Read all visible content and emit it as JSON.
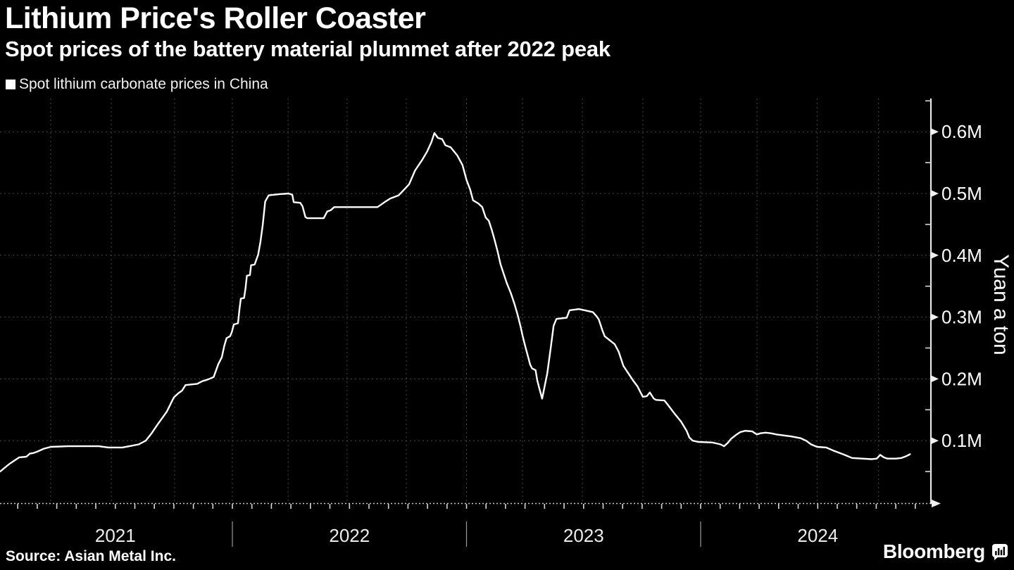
{
  "header": {
    "title": "Lithium Price's Roller Coaster",
    "subtitle": "Spot prices of the battery material plummet after 2022 peak"
  },
  "legend": {
    "label": "Spot lithium carbonate prices in China",
    "marker_color": "#ffffff"
  },
  "footer": {
    "source": "Source: Asian Metal Inc.",
    "brand": "Bloomberg"
  },
  "colors": {
    "background": "#000000",
    "line": "#ffffff",
    "grid": "#474747",
    "axis": "#e8e8e8",
    "text": "#ffffff"
  },
  "chart_data": {
    "type": "line",
    "title": "Lithium Price's Roller Coaster",
    "subtitle": "Spot prices of the battery material plummet after 2022 peak",
    "xlabel": "",
    "ylabel": "Yuan a ton",
    "legend_position": "top-left",
    "grid": "dashed dark-gray; horizontal every 0.1M, vertical quarterly",
    "xlim": [
      2021.0,
      2024.984
    ],
    "ylim": [
      0,
      0.654
    ],
    "x_year_labels": [
      "2021",
      "2022",
      "2023",
      "2024"
    ],
    "x_gridlines": [
      2021.224,
      2021.483,
      2021.753,
      2022.0,
      2022.238,
      2022.49,
      2022.743,
      2023.0,
      2023.239,
      2023.495,
      2023.753,
      2024.0,
      2024.241,
      2024.497,
      2024.76
    ],
    "y_ticks": [
      {
        "value": 0.1,
        "label": "0.1M"
      },
      {
        "value": 0.2,
        "label": "0.2M"
      },
      {
        "value": 0.3,
        "label": "0.3M"
      },
      {
        "value": 0.4,
        "label": "0.4M"
      },
      {
        "value": 0.5,
        "label": "0.5M"
      },
      {
        "value": 0.6,
        "label": "0.6M"
      }
    ],
    "y_minor_ticks": [
      0.05,
      0.15,
      0.25,
      0.35,
      0.45,
      0.55,
      0.65
    ],
    "series": [
      {
        "name": "Spot lithium carbonate prices in China",
        "color": "#ffffff",
        "unit": "million yuan per ton (decimal-year x values)",
        "points": [
          [
            2021.008,
            0.05
          ],
          [
            2021.03,
            0.057
          ],
          [
            2021.05,
            0.063
          ],
          [
            2021.07,
            0.068
          ],
          [
            2021.09,
            0.073
          ],
          [
            2021.12,
            0.074
          ],
          [
            2021.135,
            0.079
          ],
          [
            2021.15,
            0.08
          ],
          [
            2021.165,
            0.082
          ],
          [
            2021.195,
            0.087
          ],
          [
            2021.225,
            0.09
          ],
          [
            2021.3,
            0.091
          ],
          [
            2021.43,
            0.091
          ],
          [
            2021.47,
            0.089
          ],
          [
            2021.53,
            0.089
          ],
          [
            2021.56,
            0.091
          ],
          [
            2021.6,
            0.094
          ],
          [
            2021.63,
            0.1
          ],
          [
            2021.655,
            0.112
          ],
          [
            2021.68,
            0.126
          ],
          [
            2021.72,
            0.147
          ],
          [
            2021.75,
            0.17
          ],
          [
            2021.77,
            0.177
          ],
          [
            2021.785,
            0.181
          ],
          [
            2021.8,
            0.19
          ],
          [
            2021.85,
            0.192
          ],
          [
            2021.87,
            0.196
          ],
          [
            2021.895,
            0.199
          ],
          [
            2021.92,
            0.203
          ],
          [
            2021.94,
            0.224
          ],
          [
            2021.955,
            0.235
          ],
          [
            2021.965,
            0.253
          ],
          [
            2021.975,
            0.266
          ],
          [
            2021.99,
            0.269
          ],
          [
            2021.998,
            0.276
          ],
          [
            2022.006,
            0.288
          ],
          [
            2022.024,
            0.29
          ],
          [
            2022.03,
            0.312
          ],
          [
            2022.036,
            0.33
          ],
          [
            2022.05,
            0.331
          ],
          [
            2022.056,
            0.346
          ],
          [
            2022.062,
            0.367
          ],
          [
            2022.075,
            0.368
          ],
          [
            2022.08,
            0.384
          ],
          [
            2022.095,
            0.385
          ],
          [
            2022.11,
            0.401
          ],
          [
            2022.12,
            0.422
          ],
          [
            2022.13,
            0.45
          ],
          [
            2022.14,
            0.487
          ],
          [
            2022.155,
            0.497
          ],
          [
            2022.2,
            0.499
          ],
          [
            2022.24,
            0.5
          ],
          [
            2022.256,
            0.498
          ],
          [
            2022.262,
            0.486
          ],
          [
            2022.29,
            0.485
          ],
          [
            2022.3,
            0.479
          ],
          [
            2022.312,
            0.462
          ],
          [
            2022.32,
            0.46
          ],
          [
            2022.39,
            0.46
          ],
          [
            2022.405,
            0.471
          ],
          [
            2022.42,
            0.473
          ],
          [
            2022.435,
            0.478
          ],
          [
            2022.62,
            0.478
          ],
          [
            2022.65,
            0.486
          ],
          [
            2022.675,
            0.492
          ],
          [
            2022.71,
            0.497
          ],
          [
            2022.735,
            0.507
          ],
          [
            2022.755,
            0.515
          ],
          [
            2022.78,
            0.537
          ],
          [
            2022.81,
            0.554
          ],
          [
            2022.832,
            0.568
          ],
          [
            2022.85,
            0.583
          ],
          [
            2022.863,
            0.598
          ],
          [
            2022.878,
            0.59
          ],
          [
            2022.896,
            0.588
          ],
          [
            2022.91,
            0.578
          ],
          [
            2022.932,
            0.575
          ],
          [
            2022.96,
            0.562
          ],
          [
            2022.983,
            0.546
          ],
          [
            2023.0,
            0.522
          ],
          [
            2023.016,
            0.506
          ],
          [
            2023.028,
            0.489
          ],
          [
            2023.05,
            0.484
          ],
          [
            2023.067,
            0.478
          ],
          [
            2023.082,
            0.461
          ],
          [
            2023.095,
            0.456
          ],
          [
            2023.108,
            0.441
          ],
          [
            2023.12,
            0.425
          ],
          [
            2023.133,
            0.406
          ],
          [
            2023.145,
            0.386
          ],
          [
            2023.158,
            0.371
          ],
          [
            2023.172,
            0.355
          ],
          [
            2023.19,
            0.338
          ],
          [
            2023.205,
            0.321
          ],
          [
            2023.218,
            0.304
          ],
          [
            2023.23,
            0.286
          ],
          [
            2023.24,
            0.269
          ],
          [
            2023.252,
            0.251
          ],
          [
            2023.263,
            0.236
          ],
          [
            2023.272,
            0.223
          ],
          [
            2023.28,
            0.217
          ],
          [
            2023.295,
            0.214
          ],
          [
            2023.302,
            0.198
          ],
          [
            2023.31,
            0.186
          ],
          [
            2023.323,
            0.168
          ],
          [
            2023.345,
            0.209
          ],
          [
            2023.36,
            0.251
          ],
          [
            2023.372,
            0.286
          ],
          [
            2023.384,
            0.297
          ],
          [
            2023.428,
            0.299
          ],
          [
            2023.44,
            0.311
          ],
          [
            2023.48,
            0.313
          ],
          [
            2023.505,
            0.311
          ],
          [
            2023.54,
            0.308
          ],
          [
            2023.556,
            0.301
          ],
          [
            2023.565,
            0.296
          ],
          [
            2023.58,
            0.279
          ],
          [
            2023.59,
            0.269
          ],
          [
            2023.61,
            0.263
          ],
          [
            2023.633,
            0.256
          ],
          [
            2023.65,
            0.244
          ],
          [
            2023.67,
            0.221
          ],
          [
            2023.686,
            0.212
          ],
          [
            2023.714,
            0.196
          ],
          [
            2023.73,
            0.188
          ],
          [
            2023.753,
            0.171
          ],
          [
            2023.77,
            0.172
          ],
          [
            2023.783,
            0.178
          ],
          [
            2023.8,
            0.168
          ],
          [
            2023.81,
            0.166
          ],
          [
            2023.845,
            0.165
          ],
          [
            2023.856,
            0.16
          ],
          [
            2023.886,
            0.145
          ],
          [
            2023.916,
            0.131
          ],
          [
            2023.94,
            0.116
          ],
          [
            2023.952,
            0.105
          ],
          [
            2023.966,
            0.1
          ],
          [
            2023.99,
            0.098
          ],
          [
            2024.05,
            0.097
          ],
          [
            2024.085,
            0.094
          ],
          [
            2024.1,
            0.091
          ],
          [
            2024.115,
            0.096
          ],
          [
            2024.13,
            0.103
          ],
          [
            2024.15,
            0.109
          ],
          [
            2024.17,
            0.114
          ],
          [
            2024.19,
            0.116
          ],
          [
            2024.22,
            0.115
          ],
          [
            2024.24,
            0.11
          ],
          [
            2024.256,
            0.112
          ],
          [
            2024.277,
            0.113
          ],
          [
            2024.3,
            0.112
          ],
          [
            2024.325,
            0.11
          ],
          [
            2024.385,
            0.107
          ],
          [
            2024.427,
            0.104
          ],
          [
            2024.45,
            0.1
          ],
          [
            2024.472,
            0.094
          ],
          [
            2024.497,
            0.09
          ],
          [
            2024.536,
            0.089
          ],
          [
            2024.566,
            0.084
          ],
          [
            2024.608,
            0.078
          ],
          [
            2024.647,
            0.072
          ],
          [
            2024.69,
            0.071
          ],
          [
            2024.73,
            0.07
          ],
          [
            2024.752,
            0.071
          ],
          [
            2024.767,
            0.077
          ],
          [
            2024.782,
            0.073
          ],
          [
            2024.798,
            0.071
          ],
          [
            2024.834,
            0.071
          ],
          [
            2024.858,
            0.072
          ],
          [
            2024.879,
            0.075
          ],
          [
            2024.894,
            0.078
          ]
        ]
      }
    ]
  }
}
